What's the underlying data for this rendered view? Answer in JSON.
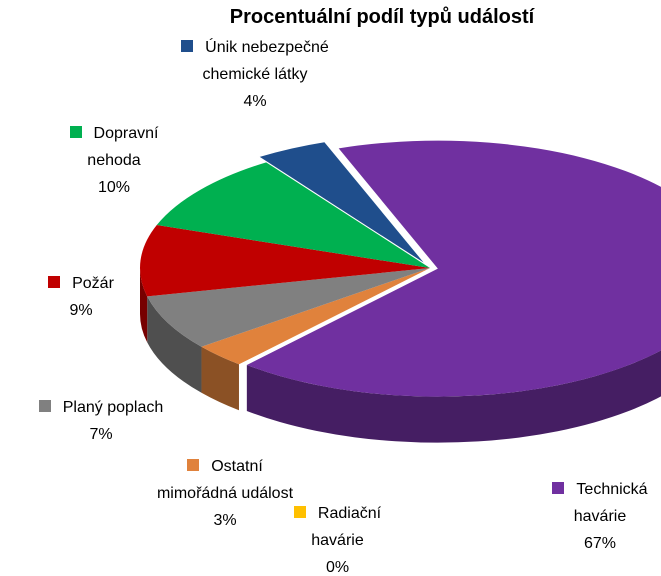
{
  "chart_data": {
    "type": "pie",
    "title": "Procentuální podíl typů událostí",
    "categories": [
      "Technická havárie",
      "Radiační havárie",
      "Ostatní mimořádná událost",
      "Planý poplach",
      "Požár",
      "Dopravní nehoda",
      "Únik nebezpečné chemické látky"
    ],
    "values": [
      67,
      0,
      3,
      7,
      9,
      10,
      4
    ],
    "value_labels": [
      "67%",
      "0%",
      "3%",
      "7%",
      "9%",
      "10%",
      "4%"
    ],
    "colors": [
      "#7030a0",
      "#ffc000",
      "#e0823c",
      "#808080",
      "#c00000",
      "#00b050",
      "#1f4e8c"
    ]
  }
}
